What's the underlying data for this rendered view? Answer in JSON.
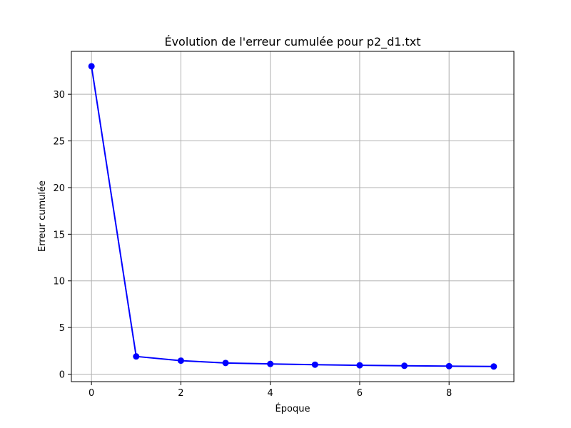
{
  "chart_data": {
    "type": "line",
    "title": "Évolution de l'erreur cumulée pour p2_d1.txt",
    "xlabel": "Époque",
    "ylabel": "Erreur cumulée",
    "x": [
      0,
      1,
      2,
      3,
      4,
      5,
      6,
      7,
      8,
      9
    ],
    "series": [
      {
        "values": [
          33.0,
          1.9,
          1.45,
          1.2,
          1.1,
          1.02,
          0.95,
          0.9,
          0.86,
          0.82
        ],
        "color": "#0000ff",
        "marker": "circle"
      }
    ],
    "xlim": [
      -0.45,
      9.45
    ],
    "ylim": [
      -0.8,
      34.6
    ],
    "xticks": [
      0,
      2,
      4,
      6,
      8
    ],
    "xtick_labels": [
      "0",
      "2",
      "4",
      "6",
      "8"
    ],
    "yticks": [
      0,
      5,
      10,
      15,
      20,
      25,
      30
    ],
    "ytick_labels": [
      "0",
      "5",
      "10",
      "15",
      "20",
      "25",
      "30"
    ],
    "grid": true,
    "grid_color": "#b0b0b0"
  }
}
